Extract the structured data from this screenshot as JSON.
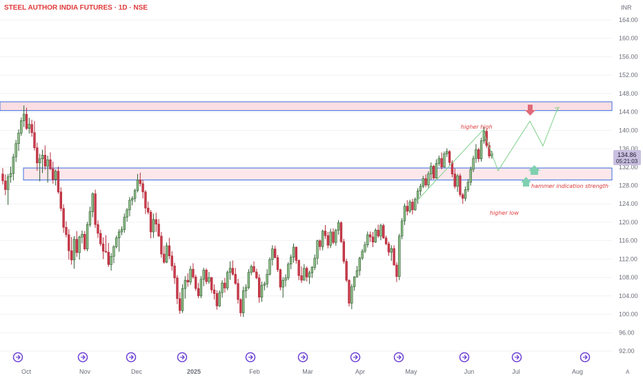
{
  "header": {
    "title": "STEEL AUTHOR INDIA FUTURES · 1D · NSE",
    "currency": "INR"
  },
  "chart_data": {
    "type": "candlestick",
    "title": "STEEL AUTHOR INDIA FUTURES · 1D · NSE",
    "y_unit": "INR",
    "ylim": [
      90,
      168
    ],
    "y_ticks": [
      "164.00",
      "160.00",
      "156.00",
      "152.00",
      "148.00",
      "144.00",
      "140.00",
      "136.00",
      "132.00",
      "128.00",
      "124.00",
      "120.00",
      "116.00",
      "112.00",
      "108.00",
      "104.00",
      "100.00",
      "96.00",
      "92.00"
    ],
    "x_labels": [
      "Oct",
      "Nov",
      "Dec",
      "2025",
      "Feb",
      "Mar",
      "Apr",
      "May",
      "Jun",
      "Jul",
      "Aug"
    ],
    "last_price": "134.86",
    "countdown": "05:21:03",
    "zones": [
      {
        "name": "resistance",
        "low": 144.3,
        "high": 146.2
      },
      {
        "name": "support",
        "low": 129.2,
        "high": 131.8
      }
    ],
    "annotations": {
      "higher_high": "higher high",
      "higher_low": "higher low",
      "hammer": "hammer indication strength"
    },
    "candles": [
      [
        130.5,
        131.8,
        128.2,
        129.0
      ],
      [
        129.0,
        130.4,
        125.9,
        127.1
      ],
      [
        127.1,
        130.5,
        123.8,
        129.9
      ],
      [
        129.9,
        132.1,
        128.6,
        130.6
      ],
      [
        130.6,
        134.9,
        129.1,
        134.2
      ],
      [
        134.2,
        137.9,
        133.1,
        137.1
      ],
      [
        137.1,
        140.2,
        135.5,
        139.4
      ],
      [
        139.4,
        142.8,
        138.8,
        142.1
      ],
      [
        142.1,
        145.4,
        140.7,
        143.5
      ],
      [
        143.5,
        144.9,
        140.1,
        140.4
      ],
      [
        140.4,
        142.7,
        139.3,
        141.3
      ],
      [
        141.3,
        142.3,
        138.6,
        139.5
      ],
      [
        139.5,
        142.0,
        135.6,
        136.2
      ],
      [
        136.2,
        137.3,
        131.2,
        132.9
      ],
      [
        132.9,
        134.9,
        128.9,
        133.8
      ],
      [
        133.8,
        135.8,
        130.7,
        134.6
      ],
      [
        134.6,
        136.7,
        131.4,
        132.2
      ],
      [
        132.2,
        134.5,
        128.6,
        133.6
      ],
      [
        133.6,
        135.2,
        131.4,
        131.6
      ],
      [
        131.6,
        133.2,
        128.4,
        129.3
      ],
      [
        129.3,
        131.5,
        128.0,
        131.1
      ],
      [
        131.1,
        132.1,
        126.2,
        126.6
      ],
      [
        126.6,
        127.6,
        122.4,
        123.0
      ],
      [
        123.0,
        123.9,
        117.7,
        118.9
      ],
      [
        118.9,
        120.2,
        116.7,
        117.3
      ],
      [
        117.3,
        118.5,
        111.9,
        113.8
      ],
      [
        113.8,
        116.8,
        110.8,
        111.8
      ],
      [
        111.8,
        117.0,
        109.9,
        116.3
      ],
      [
        116.3,
        118.1,
        112.5,
        113.4
      ],
      [
        113.4,
        117.1,
        111.9,
        116.8
      ],
      [
        116.8,
        118.2,
        115.4,
        117.4
      ],
      [
        117.4,
        118.1,
        113.8,
        114.2
      ],
      [
        114.2,
        120.1,
        113.7,
        119.5
      ],
      [
        119.5,
        123.4,
        119.0,
        122.3
      ],
      [
        122.3,
        126.5,
        121.1,
        126.2
      ],
      [
        126.2,
        127.1,
        118.8,
        119.5
      ],
      [
        119.5,
        120.4,
        116.6,
        117.6
      ],
      [
        117.6,
        118.4,
        114.8,
        115.3
      ],
      [
        115.3,
        116.7,
        112.0,
        113.7
      ],
      [
        113.7,
        117.2,
        113.4,
        113.5
      ],
      [
        113.5,
        115.5,
        110.3,
        110.8
      ],
      [
        110.8,
        113.3,
        109.5,
        112.6
      ],
      [
        112.6,
        115.0,
        111.1,
        114.7
      ],
      [
        114.7,
        117.1,
        114.3,
        116.6
      ],
      [
        116.6,
        118.5,
        113.6,
        117.9
      ],
      [
        117.9,
        119.1,
        117.2,
        118.4
      ],
      [
        118.4,
        121.9,
        117.7,
        121.1
      ],
      [
        121.1,
        123.1,
        120.1,
        122.7
      ],
      [
        122.7,
        125.5,
        121.3,
        124.8
      ],
      [
        124.8,
        125.7,
        123.7,
        125.2
      ],
      [
        125.2,
        127.3,
        124.4,
        126.9
      ],
      [
        126.9,
        130.5,
        126.5,
        129.2
      ],
      [
        129.2,
        130.8,
        127.8,
        128.4
      ],
      [
        128.4,
        129.2,
        125.2,
        126.6
      ],
      [
        126.6,
        127.0,
        121.8,
        123.1
      ],
      [
        123.1,
        124.5,
        121.7,
        122.2
      ],
      [
        122.2,
        122.7,
        116.5,
        117.9
      ],
      [
        117.9,
        121.9,
        116.6,
        120.6
      ],
      [
        120.6,
        122.1,
        117.9,
        119.6
      ],
      [
        119.6,
        120.7,
        116.8,
        117.0
      ],
      [
        117.0,
        117.9,
        112.3,
        113.1
      ],
      [
        113.1,
        114.9,
        111.0,
        111.3
      ],
      [
        111.3,
        115.6,
        111.1,
        114.9
      ],
      [
        114.9,
        116.6,
        112.0,
        112.7
      ],
      [
        112.7,
        113.7,
        109.5,
        110.5
      ],
      [
        110.5,
        111.2,
        106.6,
        107.9
      ],
      [
        107.9,
        108.5,
        102.2,
        103.4
      ],
      [
        103.4,
        104.8,
        100.1,
        100.8
      ],
      [
        100.8,
        106.5,
        100.3,
        105.6
      ],
      [
        105.6,
        108.3,
        103.4,
        107.4
      ],
      [
        107.4,
        108.9,
        106.0,
        107.0
      ],
      [
        107.0,
        110.5,
        106.4,
        109.8
      ],
      [
        109.8,
        111.1,
        107.7,
        108.1
      ],
      [
        108.1,
        108.6,
        105.1,
        105.6
      ],
      [
        105.6,
        106.8,
        103.5,
        104.0
      ],
      [
        104.0,
        108.3,
        103.5,
        107.6
      ],
      [
        107.6,
        110.1,
        106.1,
        109.6
      ],
      [
        109.6,
        110.0,
        106.5,
        107.1
      ],
      [
        107.1,
        109.2,
        106.6,
        108.0
      ],
      [
        108.0,
        108.1,
        104.6,
        105.3
      ],
      [
        105.3,
        106.5,
        103.2,
        104.5
      ],
      [
        104.5,
        105.2,
        101.0,
        101.8
      ],
      [
        101.8,
        105.2,
        101.6,
        104.7
      ],
      [
        104.7,
        107.4,
        103.6,
        106.8
      ],
      [
        106.8,
        107.9,
        104.7,
        105.7
      ],
      [
        105.7,
        109.5,
        105.2,
        109.1
      ],
      [
        109.1,
        111.5,
        107.5,
        110.0
      ],
      [
        110.0,
        111.7,
        108.4,
        108.7
      ],
      [
        108.7,
        110.1,
        106.4,
        106.7
      ],
      [
        106.7,
        107.7,
        102.3,
        103.2
      ],
      [
        103.2,
        103.5,
        99.5,
        100.3
      ],
      [
        100.3,
        106.0,
        99.4,
        105.1
      ],
      [
        105.1,
        106.5,
        103.5,
        105.8
      ],
      [
        105.8,
        109.8,
        105.4,
        109.1
      ],
      [
        109.1,
        110.8,
        108.5,
        110.4
      ],
      [
        110.4,
        111.5,
        109.1,
        109.2
      ],
      [
        109.2,
        109.9,
        107.6,
        107.9
      ],
      [
        107.9,
        108.7,
        102.5,
        103.7
      ],
      [
        103.7,
        107.1,
        102.7,
        106.3
      ],
      [
        106.3,
        107.1,
        105.2,
        106.6
      ],
      [
        106.6,
        109.8,
        105.8,
        108.7
      ],
      [
        108.7,
        112.4,
        108.4,
        111.9
      ],
      [
        111.9,
        115.0,
        110.6,
        114.2
      ],
      [
        114.2,
        114.9,
        112.2,
        112.3
      ],
      [
        112.3,
        112.9,
        109.2,
        109.7
      ],
      [
        109.7,
        109.9,
        105.2,
        105.9
      ],
      [
        105.9,
        108.1,
        103.6,
        107.4
      ],
      [
        107.4,
        108.7,
        106.0,
        107.9
      ],
      [
        107.9,
        111.3,
        107.4,
        110.9
      ],
      [
        110.9,
        113.0,
        109.8,
        112.4
      ],
      [
        112.4,
        115.4,
        111.2,
        114.6
      ],
      [
        114.6,
        114.7,
        111.0,
        111.7
      ],
      [
        111.7,
        111.9,
        107.4,
        108.4
      ],
      [
        108.4,
        110.4,
        106.8,
        107.4
      ],
      [
        107.4,
        110.9,
        107.3,
        110.0
      ],
      [
        110.0,
        110.4,
        107.1,
        108.1
      ],
      [
        108.1,
        109.5,
        106.6,
        109.0
      ],
      [
        109.0,
        110.5,
        107.9,
        110.2
      ],
      [
        110.2,
        113.0,
        109.6,
        112.2
      ],
      [
        112.2,
        116.2,
        110.8,
        116.0
      ],
      [
        116.0,
        116.3,
        113.9,
        114.7
      ],
      [
        114.7,
        118.4,
        113.9,
        118.1
      ],
      [
        118.1,
        119.4,
        116.4,
        117.1
      ],
      [
        117.1,
        117.9,
        114.3,
        115.0
      ],
      [
        115.0,
        118.6,
        114.4,
        117.9
      ],
      [
        117.9,
        118.7,
        115.2,
        115.6
      ],
      [
        115.6,
        118.6,
        114.9,
        118.3
      ],
      [
        118.3,
        120.5,
        117.3,
        119.9
      ],
      [
        119.9,
        120.2,
        115.5,
        115.8
      ],
      [
        115.8,
        116.4,
        111.0,
        111.5
      ],
      [
        111.5,
        112.1,
        107.0,
        107.4
      ],
      [
        107.4,
        107.6,
        101.7,
        102.4
      ],
      [
        102.4,
        106.6,
        101.1,
        106.0
      ],
      [
        106.0,
        108.3,
        105.1,
        108.1
      ],
      [
        108.1,
        110.5,
        108.0,
        109.5
      ],
      [
        109.5,
        112.5,
        108.4,
        112.2
      ],
      [
        112.2,
        114.2,
        111.8,
        113.7
      ],
      [
        113.7,
        115.8,
        113.3,
        115.1
      ],
      [
        115.1,
        118.0,
        114.5,
        117.3
      ],
      [
        117.3,
        118.0,
        115.7,
        116.8
      ],
      [
        116.8,
        117.9,
        114.6,
        115.7
      ],
      [
        115.7,
        118.7,
        115.5,
        118.3
      ],
      [
        118.3,
        119.5,
        116.6,
        117.0
      ],
      [
        117.0,
        119.7,
        116.1,
        119.3
      ],
      [
        119.3,
        119.7,
        116.4,
        116.6
      ],
      [
        116.6,
        117.1,
        115.0,
        115.3
      ],
      [
        115.3,
        115.8,
        112.7,
        113.5
      ],
      [
        113.5,
        115.0,
        111.6,
        114.3
      ],
      [
        114.3,
        115.0,
        110.6,
        110.7
      ],
      [
        110.7,
        111.3,
        107.0,
        108.2
      ],
      [
        108.2,
        117.5,
        107.4,
        117.0
      ],
      [
        117.0,
        120.9,
        116.3,
        120.3
      ],
      [
        120.3,
        124.1,
        119.4,
        123.5
      ],
      [
        123.5,
        124.8,
        121.5,
        122.4
      ],
      [
        122.4,
        124.9,
        122.0,
        124.4
      ],
      [
        124.4,
        125.1,
        121.7,
        122.7
      ],
      [
        122.7,
        125.4,
        122.5,
        125.0
      ],
      [
        125.0,
        127.4,
        124.0,
        126.8
      ],
      [
        126.8,
        128.4,
        125.8,
        127.8
      ],
      [
        127.8,
        130.1,
        127.4,
        129.5
      ],
      [
        129.5,
        130.4,
        127.6,
        128.1
      ],
      [
        128.1,
        131.1,
        127.5,
        130.5
      ],
      [
        130.5,
        133.0,
        129.3,
        132.2
      ],
      [
        132.2,
        132.5,
        129.4,
        129.6
      ],
      [
        129.6,
        133.7,
        129.5,
        132.8
      ],
      [
        132.8,
        134.5,
        132.2,
        133.9
      ],
      [
        133.9,
        135.2,
        131.5,
        132.0
      ],
      [
        132.0,
        135.4,
        131.9,
        134.9
      ],
      [
        134.9,
        136.1,
        134.2,
        135.4
      ],
      [
        135.4,
        135.7,
        132.4,
        133.0
      ],
      [
        133.0,
        133.5,
        129.8,
        130.5
      ],
      [
        130.5,
        131.7,
        127.3,
        127.8
      ],
      [
        127.8,
        130.5,
        126.6,
        130.1
      ],
      [
        130.1,
        130.6,
        125.5,
        126.0
      ],
      [
        126.0,
        126.4,
        124.0,
        125.2
      ],
      [
        125.2,
        127.8,
        124.6,
        127.1
      ],
      [
        127.1,
        129.4,
        126.6,
        128.7
      ],
      [
        128.7,
        132.1,
        128.0,
        131.5
      ],
      [
        131.5,
        134.5,
        130.9,
        133.9
      ],
      [
        133.9,
        137.0,
        132.9,
        135.8
      ],
      [
        135.8,
        136.2,
        133.1,
        133.8
      ],
      [
        133.8,
        138.4,
        133.2,
        137.7
      ],
      [
        137.7,
        140.7,
        137.1,
        139.8
      ],
      [
        139.8,
        140.2,
        136.2,
        136.7
      ],
      [
        136.7,
        137.5,
        133.9,
        134.4
      ],
      [
        134.4,
        135.5,
        133.8,
        134.9
      ]
    ]
  }
}
